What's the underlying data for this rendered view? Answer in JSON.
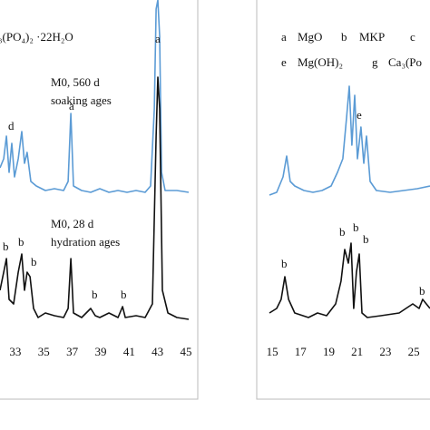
{
  "chart_data": [
    {
      "type": "line",
      "xlim": [
        31.92,
        45.19
      ],
      "xticks": [
        33,
        35,
        37,
        39,
        41,
        43,
        45
      ],
      "ylim": [
        0,
        360
      ],
      "annotations": [
        "₃(PO₄)₂ ·22H₂O",
        "M0, 560 d",
        "soaking ages",
        "M0, 28 d",
        "hydration ages",
        "a",
        "a",
        "d",
        "b",
        "b",
        "b",
        "b",
        "b"
      ],
      "series": [
        {
          "color": "#5b9bd5",
          "x": [
            31.92,
            32.18,
            32.37,
            32.56,
            32.75,
            32.94,
            33.2,
            33.45,
            33.64,
            33.83,
            34.09,
            34.47,
            35.11,
            35.75,
            36.39,
            36.71,
            36.9,
            37.09,
            37.66,
            38.3,
            38.94,
            39.58,
            40.22,
            40.85,
            41.49,
            42.13,
            42.51,
            42.77,
            42.9,
            43.02,
            43.15,
            43.28,
            43.53,
            44.36,
            45.19
          ],
          "values": [
            175,
            185,
            210,
            170,
            202,
            165,
            185,
            215,
            180,
            192,
            160,
            155,
            150,
            152,
            150,
            160,
            235,
            155,
            150,
            148,
            152,
            148,
            150,
            148,
            150,
            148,
            155,
            240,
            350,
            360,
            320,
            170,
            150,
            150,
            148
          ]
        },
        {
          "color": "#111111",
          "x": [
            31.92,
            32.18,
            32.37,
            32.56,
            32.88,
            33.2,
            33.45,
            33.64,
            33.83,
            34.03,
            34.28,
            34.6,
            35.11,
            35.75,
            36.39,
            36.71,
            36.9,
            37.09,
            37.66,
            38.3,
            38.62,
            38.94,
            39.58,
            40.22,
            40.54,
            40.73,
            41.49,
            42.13,
            42.64,
            42.9,
            43.02,
            43.15,
            43.34,
            43.73,
            44.36,
            45.19
          ],
          "values": [
            40,
            60,
            75,
            30,
            25,
            60,
            80,
            40,
            60,
            55,
            20,
            10,
            15,
            12,
            10,
            20,
            75,
            15,
            10,
            20,
            12,
            10,
            15,
            10,
            22,
            10,
            12,
            10,
            25,
            210,
            275,
            240,
            40,
            15,
            10,
            8
          ]
        }
      ]
    },
    {
      "type": "line",
      "xlim": [
        14.8,
        26.15
      ],
      "xticks": [
        15,
        17,
        19,
        21,
        23,
        25
      ],
      "ylim": [
        0,
        360
      ],
      "annotations": [
        "a",
        "MgO",
        "b",
        "MKP",
        "c",
        "e",
        "Mg(OH)₂",
        "g",
        "Ca₃(Po",
        "e",
        "b",
        "b",
        "b",
        "b",
        "b"
      ],
      "series": [
        {
          "color": "#5b9bd5",
          "x": [
            14.8,
            15.31,
            15.76,
            16.02,
            16.27,
            16.59,
            17.24,
            17.88,
            18.52,
            19.16,
            19.61,
            19.99,
            20.25,
            20.44,
            20.63,
            20.83,
            21.02,
            21.27,
            21.47,
            21.66,
            21.92,
            22.36,
            23.33,
            24.29,
            25.25,
            26.15
          ],
          "values": [
            145,
            148,
            165,
            188,
            160,
            155,
            150,
            148,
            150,
            155,
            170,
            185,
            230,
            265,
            200,
            255,
            185,
            220,
            180,
            210,
            160,
            150,
            148,
            150,
            152,
            155
          ]
        },
        {
          "color": "#111111",
          "x": [
            14.8,
            15.31,
            15.63,
            15.89,
            16.15,
            16.59,
            17.56,
            18.2,
            18.84,
            19.48,
            19.86,
            20.12,
            20.38,
            20.57,
            20.76,
            20.95,
            21.15,
            21.34,
            21.72,
            22.68,
            23.97,
            24.93,
            25.38,
            25.63,
            26.15
          ],
          "values": [
            15,
            20,
            30,
            55,
            30,
            15,
            10,
            15,
            12,
            25,
            50,
            85,
            70,
            92,
            20,
            60,
            80,
            15,
            10,
            12,
            15,
            25,
            20,
            30,
            20
          ]
        }
      ]
    }
  ]
}
